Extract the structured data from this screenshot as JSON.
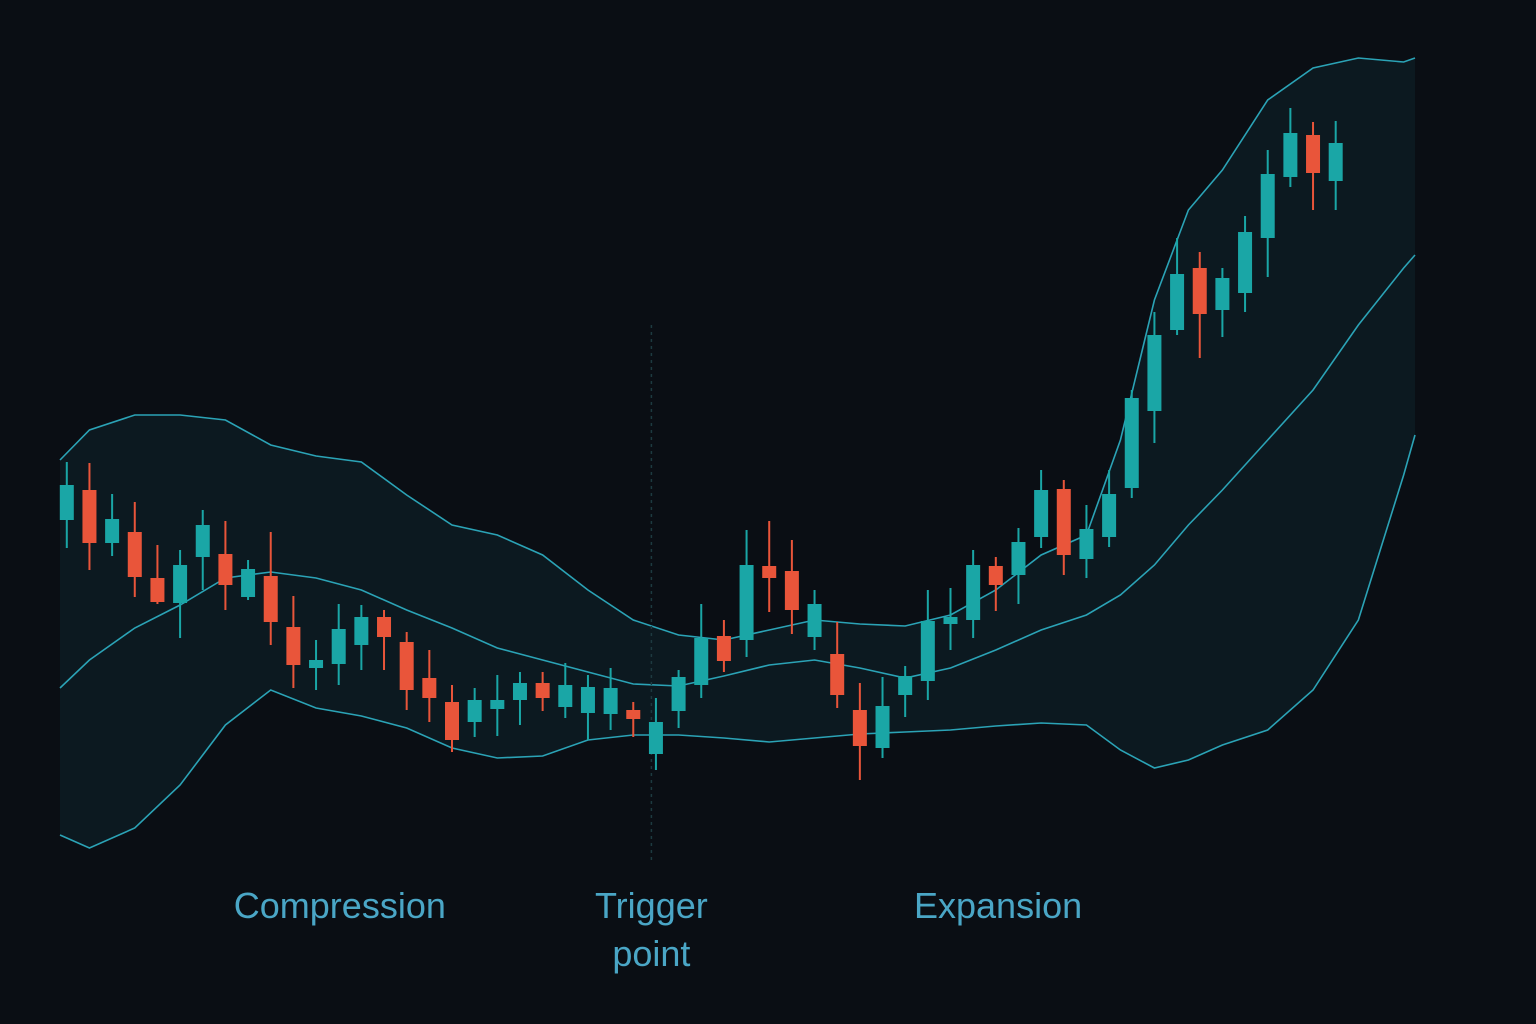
{
  "chart_data": {
    "type": "candlestick",
    "xlim": [
      -0.3,
      59.5
    ],
    "ylim": [
      0,
      100
    ],
    "up_color": "#1aa6a6",
    "down_color": "#e9553a",
    "candles": {
      "x": [
        0,
        1,
        2,
        3,
        4,
        5,
        6,
        7,
        8,
        9,
        10,
        11,
        12,
        13,
        14,
        15,
        16,
        17,
        18,
        19,
        20,
        21,
        22,
        23,
        24,
        25,
        26,
        27,
        28,
        29,
        30,
        31,
        32,
        33,
        34,
        35,
        36,
        37,
        38,
        39,
        40,
        41,
        42,
        43,
        44,
        45,
        46,
        47,
        48,
        49,
        50,
        51,
        52,
        53,
        54,
        55,
        56
      ],
      "open": [
        48,
        51,
        45.7,
        46.8,
        42.2,
        39.7,
        44.3,
        44.6,
        40.3,
        42.4,
        37.3,
        33.2,
        33.6,
        35.5,
        38.3,
        35.8,
        32.2,
        29.8,
        27.8,
        29.1,
        30,
        31.7,
        29.3,
        28.7,
        28.6,
        29,
        24.6,
        28.9,
        31.5,
        36.4,
        36,
        43.4,
        42.9,
        36.3,
        34.6,
        29,
        25.2,
        30.5,
        31.9,
        37.6,
        38,
        43.4,
        42.5,
        46.3,
        51.1,
        44.1,
        46.3,
        51.2,
        58.9,
        67,
        73.2,
        69,
        70.7,
        76.2,
        82.3,
        86.5,
        81.9
      ],
      "high": [
        53.8,
        53.7,
        50.6,
        49.8,
        45.5,
        45,
        49,
        47.9,
        44,
        46.8,
        40.4,
        36,
        39.6,
        39.5,
        39,
        36.8,
        35,
        31.5,
        31.2,
        32.5,
        32.8,
        32.8,
        33.7,
        32.5,
        33.2,
        29.8,
        30.2,
        33,
        39.6,
        38,
        47,
        47.9,
        46,
        41,
        37.8,
        31.7,
        32.3,
        33.4,
        41,
        41.2,
        45,
        44.3,
        47.2,
        53,
        52,
        49.5,
        53,
        61,
        68.8,
        76.2,
        74.8,
        73.2,
        78.4,
        85,
        89.2,
        87.8,
        87.9
      ],
      "low": [
        45.2,
        43,
        44.4,
        40.3,
        39.6,
        36.2,
        41,
        39,
        40,
        35.5,
        31.2,
        31,
        31.5,
        33,
        33,
        29,
        27.8,
        24.8,
        26.3,
        26.4,
        27.5,
        28.9,
        28.2,
        26,
        27,
        26.3,
        23,
        27.2,
        30.2,
        32.8,
        34.3,
        38.8,
        36.6,
        35,
        29.2,
        22,
        24.2,
        28.3,
        30,
        35,
        36.2,
        38.9,
        39.6,
        45.2,
        42.5,
        42.2,
        45.3,
        50.2,
        55.7,
        66.5,
        64.2,
        66.3,
        68.8,
        72.3,
        81.3,
        79,
        79
      ],
      "close": [
        51.5,
        45.7,
        48.1,
        42.3,
        39.8,
        43.5,
        47.5,
        41.5,
        43.1,
        37.8,
        33.5,
        34,
        37.1,
        38.3,
        36.3,
        31,
        30.2,
        26,
        30,
        30,
        31.7,
        30.2,
        31.5,
        31.3,
        31.2,
        28.1,
        27.8,
        32.3,
        36.2,
        33.9,
        43.5,
        42.2,
        39,
        39.6,
        30.5,
        25.4,
        29.4,
        32.4,
        37.9,
        38.3,
        43.5,
        41.5,
        45.8,
        51,
        44.5,
        47.1,
        50.6,
        60.2,
        66.5,
        72.6,
        68.6,
        72.2,
        76.8,
        82.6,
        86.7,
        82.7,
        85.7
      ]
    },
    "bands": {
      "color": "#2ba3b6",
      "fill": "#0c1920",
      "x": [
        -0.3,
        1,
        3,
        5,
        7,
        9,
        11,
        13,
        15,
        17,
        19,
        21,
        23,
        25,
        27,
        29,
        31,
        33,
        35,
        37,
        39,
        41,
        43,
        45,
        46.5,
        48,
        49.5,
        51,
        53,
        55,
        57,
        59,
        59.5
      ],
      "upper": [
        54,
        57,
        58.5,
        58.5,
        58,
        55.5,
        54.4,
        53.8,
        50.5,
        47.5,
        46.5,
        44.5,
        41,
        38,
        36.5,
        36,
        37,
        38,
        37.6,
        37.4,
        38.5,
        41,
        44.5,
        46.5,
        56,
        70,
        79,
        83,
        90,
        93.2,
        94.2,
        93.8,
        94.2
      ],
      "middle": [
        31.2,
        34,
        37.2,
        39.5,
        42.2,
        42.8,
        42.2,
        41,
        39,
        37.2,
        35.2,
        34,
        32.8,
        31.6,
        31.4,
        32.4,
        33.5,
        34,
        33.2,
        32.2,
        33.2,
        35,
        37,
        38.5,
        40.5,
        43.5,
        47.5,
        51,
        56,
        61,
        67.5,
        73.2,
        74.5
      ],
      "lower": [
        16.5,
        15.2,
        17.2,
        21.5,
        27.5,
        31,
        29.2,
        28.4,
        27.2,
        25.2,
        24.2,
        24.4,
        26,
        26.5,
        26.5,
        26.2,
        25.8,
        26.2,
        26.6,
        26.8,
        27,
        27.4,
        27.7,
        27.5,
        25,
        23.2,
        24,
        25.5,
        27,
        31,
        38,
        52.5,
        56.5
      ]
    },
    "trigger_line": {
      "x": 25.8,
      "from": 14,
      "to": 67.5,
      "color": "#1d3a40"
    },
    "annotations": [
      {
        "text": "Compression",
        "x": 12.05
      },
      {
        "text": "Trigger point",
        "x": 25.8
      },
      {
        "text": "Expansion",
        "x": 41.1
      }
    ]
  }
}
